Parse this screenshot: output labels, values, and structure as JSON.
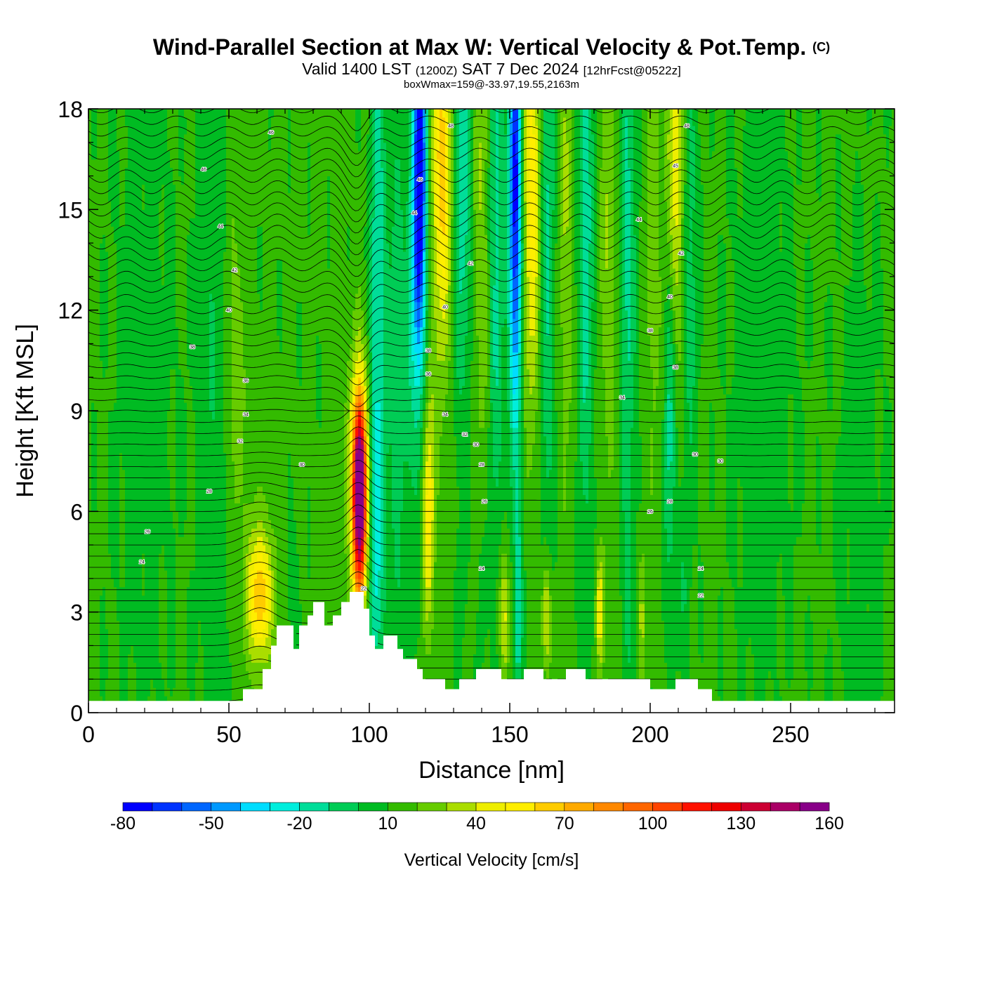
{
  "title": {
    "main": "Wind-Parallel Section at Max W: Vertical Velocity & Pot.Temp.",
    "copyright": "(C)",
    "valid": "Valid 1400 LST",
    "zulu": "(1200Z)",
    "date": "SAT 7 Dec 2024",
    "forecast": "[12hrFcst@0522z]",
    "boxwmax": "boxWmax=159@-33.97,19.55,2163m"
  },
  "chart_data": {
    "type": "heatmap",
    "xlabel": "Distance [nm]",
    "ylabel": "Height [Kft MSL]",
    "xlim": [
      0,
      287
    ],
    "ylim": [
      0,
      18
    ],
    "xticks": [
      0,
      50,
      100,
      150,
      200,
      250
    ],
    "yticks": [
      0,
      3,
      6,
      9,
      12,
      15,
      18
    ],
    "background_w": 12,
    "colorbar": {
      "label": "Vertical Velocity [cm/s]",
      "min": -80,
      "max": 170,
      "step": 10,
      "tick_values": [
        -80,
        -50,
        -20,
        10,
        40,
        70,
        100,
        130,
        160
      ],
      "colors": [
        "#0000ff",
        "#0033ff",
        "#0066ff",
        "#0099ff",
        "#00ddff",
        "#00eedd",
        "#00dd99",
        "#00cc55",
        "#00bb22",
        "#33bb00",
        "#66cc00",
        "#aadd00",
        "#eeee00",
        "#ffee00",
        "#ffcc00",
        "#ffaa00",
        "#ff8800",
        "#ff6600",
        "#ff4400",
        "#ff1100",
        "#ee0000",
        "#cc0033",
        "#aa0066",
        "#880088"
      ]
    },
    "terrain_kft": [
      [
        0,
        0.35
      ],
      [
        55,
        0.35
      ],
      [
        55,
        0.7
      ],
      [
        62,
        0.7
      ],
      [
        62,
        1.3
      ],
      [
        65,
        1.3
      ],
      [
        65,
        2.0
      ],
      [
        67,
        2.0
      ],
      [
        67,
        2.6
      ],
      [
        73,
        2.6
      ],
      [
        73,
        1.9
      ],
      [
        75,
        1.9
      ],
      [
        75,
        2.6
      ],
      [
        78,
        2.6
      ],
      [
        78,
        2.9
      ],
      [
        80,
        2.9
      ],
      [
        80,
        3.3
      ],
      [
        84,
        3.3
      ],
      [
        84,
        2.6
      ],
      [
        87,
        2.6
      ],
      [
        87,
        2.9
      ],
      [
        90,
        2.9
      ],
      [
        90,
        3.3
      ],
      [
        93,
        3.3
      ],
      [
        93,
        3.6
      ],
      [
        98,
        3.6
      ],
      [
        98,
        3.1
      ],
      [
        100,
        3.1
      ],
      [
        100,
        2.3
      ],
      [
        102,
        2.3
      ],
      [
        102,
        1.9
      ],
      [
        105,
        1.9
      ],
      [
        105,
        2.3
      ],
      [
        110,
        2.3
      ],
      [
        110,
        1.9
      ],
      [
        112,
        1.9
      ],
      [
        112,
        1.6
      ],
      [
        117,
        1.6
      ],
      [
        117,
        1.3
      ],
      [
        119,
        1.3
      ],
      [
        119,
        1.0
      ],
      [
        127,
        1.0
      ],
      [
        127,
        0.7
      ],
      [
        132,
        0.7
      ],
      [
        132,
        1.0
      ],
      [
        138,
        1.0
      ],
      [
        138,
        1.3
      ],
      [
        147,
        1.3
      ],
      [
        147,
        1.0
      ],
      [
        155,
        1.0
      ],
      [
        155,
        1.3
      ],
      [
        162,
        1.3
      ],
      [
        162,
        1.0
      ],
      [
        170,
        1.0
      ],
      [
        170,
        1.3
      ],
      [
        177,
        1.3
      ],
      [
        177,
        1.0
      ],
      [
        200,
        1.0
      ],
      [
        200,
        0.7
      ],
      [
        209,
        0.7
      ],
      [
        209,
        1.0
      ],
      [
        217,
        1.0
      ],
      [
        217,
        0.7
      ],
      [
        222,
        0.7
      ],
      [
        222,
        0.35
      ],
      [
        287,
        0.35
      ]
    ],
    "features": [
      {
        "x": 96.5,
        "y": 6.6,
        "sx": 1.6,
        "sy": 1.9,
        "w": 150
      },
      {
        "x": 96.5,
        "y": 6.4,
        "sx": 3.0,
        "sy": 3.0,
        "w": 40
      },
      {
        "x": 61,
        "y": 3.5,
        "sx": 2.6,
        "sy": 1.2,
        "w": 45
      },
      {
        "x": 61,
        "y": 3.5,
        "sx": 5,
        "sy": 2.2,
        "w": 15
      },
      {
        "x": 52,
        "y": 10.5,
        "sx": 3,
        "sy": 4,
        "w": 15
      },
      {
        "x": 102,
        "y": 4.8,
        "sx": 2,
        "sy": 3.2,
        "w": -30
      },
      {
        "x": 103,
        "y": 13,
        "sx": 2,
        "sy": 6,
        "w": -30
      },
      {
        "x": 110,
        "y": 10,
        "sx": 3,
        "sy": 7,
        "w": -15
      },
      {
        "x": 118,
        "y": 16.5,
        "sx": 1.6,
        "sy": 3.5,
        "w": -85
      },
      {
        "x": 117,
        "y": 12.5,
        "sx": 2.2,
        "sy": 4,
        "w": -35
      },
      {
        "x": 121,
        "y": 5.8,
        "sx": 1.5,
        "sy": 2.2,
        "w": 40
      },
      {
        "x": 121,
        "y": 9,
        "sx": 2.5,
        "sy": 2.5,
        "w": 10
      },
      {
        "x": 126,
        "y": 17,
        "sx": 2.5,
        "sy": 3,
        "w": 48
      },
      {
        "x": 126,
        "y": 13,
        "sx": 2.5,
        "sy": 3,
        "w": 18
      },
      {
        "x": 133,
        "y": 16,
        "sx": 2.5,
        "sy": 5,
        "w": -30
      },
      {
        "x": 140,
        "y": 16,
        "sx": 2.5,
        "sy": 6,
        "w": 20
      },
      {
        "x": 145,
        "y": 15,
        "sx": 2,
        "sy": 7,
        "w": -28
      },
      {
        "x": 152,
        "y": 16.5,
        "sx": 1.5,
        "sy": 4,
        "w": -75
      },
      {
        "x": 152,
        "y": 12,
        "sx": 1.8,
        "sy": 4,
        "w": -30
      },
      {
        "x": 153,
        "y": 3,
        "sx": 1,
        "sy": 2.2,
        "w": -32
      },
      {
        "x": 158,
        "y": 16,
        "sx": 2.5,
        "sy": 5,
        "w": 45
      },
      {
        "x": 163,
        "y": 15,
        "sx": 2,
        "sy": 7,
        "w": -28
      },
      {
        "x": 170,
        "y": 15.5,
        "sx": 2,
        "sy": 6,
        "w": 18
      },
      {
        "x": 177,
        "y": 15,
        "sx": 2,
        "sy": 7,
        "w": -28
      },
      {
        "x": 185,
        "y": 15,
        "sx": 2,
        "sy": 6,
        "w": 18
      },
      {
        "x": 192,
        "y": 14,
        "sx": 2,
        "sy": 7,
        "w": -25
      },
      {
        "x": 201,
        "y": 15,
        "sx": 2,
        "sy": 6,
        "w": 15
      },
      {
        "x": 209,
        "y": 16,
        "sx": 2.5,
        "sy": 4,
        "w": 35
      },
      {
        "x": 207,
        "y": 9,
        "sx": 1.5,
        "sy": 4,
        "w": -28
      },
      {
        "x": 214,
        "y": 14,
        "sx": 2,
        "sy": 5,
        "w": -20
      },
      {
        "x": 148,
        "y": 3,
        "sx": 1.2,
        "sy": 1.4,
        "w": 35
      },
      {
        "x": 163,
        "y": 2.8,
        "sx": 1.2,
        "sy": 1.3,
        "w": 35
      },
      {
        "x": 182,
        "y": 3,
        "sx": 1,
        "sy": 1.2,
        "w": 38
      },
      {
        "x": 133,
        "y": 3.5,
        "sx": 1.2,
        "sy": 1.5,
        "w": -5
      },
      {
        "x": 140,
        "y": 3.2,
        "sx": 1,
        "sy": 1.5,
        "w": -10
      },
      {
        "x": 176,
        "y": 3,
        "sx": 1.2,
        "sy": 1.4,
        "w": -5
      },
      {
        "x": 192,
        "y": 2.8,
        "sx": 1,
        "sy": 1.5,
        "w": -10
      },
      {
        "x": 197,
        "y": 3,
        "sx": 1,
        "sy": 1.4,
        "w": 20
      },
      {
        "x": 212,
        "y": 3.5,
        "sx": 1.5,
        "sy": 1.5,
        "w": -10
      },
      {
        "x": 73,
        "y": 3.5,
        "sx": 1.5,
        "sy": 1.5,
        "w": -10
      },
      {
        "x": 83,
        "y": 4,
        "sx": 1.5,
        "sy": 1.5,
        "w": 5
      },
      {
        "x": 45,
        "y": 9,
        "sx": 4,
        "sy": 8,
        "w": -12
      },
      {
        "x": 240,
        "y": 10,
        "sx": 8,
        "sy": 6,
        "w": -8
      },
      {
        "x": 275,
        "y": 6,
        "sx": 6,
        "sy": 6,
        "w": -6
      },
      {
        "x": 20,
        "y": 10,
        "sx": 8,
        "sy": 8,
        "w": -6
      }
    ],
    "theta_contours": {
      "min": 290,
      "max": 346,
      "step": 1
    },
    "contour_labels": [
      {
        "x": 65,
        "y": 17.3,
        "text": "46"
      },
      {
        "x": 41,
        "y": 16.2,
        "text": "46"
      },
      {
        "x": 118,
        "y": 15.9,
        "text": "46"
      },
      {
        "x": 129,
        "y": 17.5,
        "text": "48"
      },
      {
        "x": 213,
        "y": 17.5,
        "text": "48"
      },
      {
        "x": 209,
        "y": 16.3,
        "text": "45"
      },
      {
        "x": 47,
        "y": 14.5,
        "text": "44"
      },
      {
        "x": 116,
        "y": 14.9,
        "text": "44"
      },
      {
        "x": 196,
        "y": 14.7,
        "text": "44"
      },
      {
        "x": 52,
        "y": 13.2,
        "text": "42"
      },
      {
        "x": 136,
        "y": 13.4,
        "text": "42"
      },
      {
        "x": 211,
        "y": 13.7,
        "text": "42"
      },
      {
        "x": 50,
        "y": 12.0,
        "text": "40"
      },
      {
        "x": 127,
        "y": 12.1,
        "text": "40"
      },
      {
        "x": 207,
        "y": 12.4,
        "text": "40"
      },
      {
        "x": 37,
        "y": 10.9,
        "text": "38"
      },
      {
        "x": 121,
        "y": 10.8,
        "text": "38"
      },
      {
        "x": 200,
        "y": 11.4,
        "text": "38"
      },
      {
        "x": 209,
        "y": 10.3,
        "text": "38"
      },
      {
        "x": 56,
        "y": 9.9,
        "text": "36"
      },
      {
        "x": 121,
        "y": 10.1,
        "text": "36"
      },
      {
        "x": 56,
        "y": 8.9,
        "text": "34"
      },
      {
        "x": 127,
        "y": 8.9,
        "text": "34"
      },
      {
        "x": 190,
        "y": 9.4,
        "text": "34"
      },
      {
        "x": 54,
        "y": 8.1,
        "text": "32"
      },
      {
        "x": 134,
        "y": 8.3,
        "text": "32"
      },
      {
        "x": 138,
        "y": 8.0,
        "text": "30"
      },
      {
        "x": 216,
        "y": 7.7,
        "text": "30"
      },
      {
        "x": 225,
        "y": 7.5,
        "text": "30"
      },
      {
        "x": 76,
        "y": 7.4,
        "text": "30"
      },
      {
        "x": 140,
        "y": 7.4,
        "text": "28"
      },
      {
        "x": 207,
        "y": 6.3,
        "text": "28"
      },
      {
        "x": 43,
        "y": 6.6,
        "text": "28"
      },
      {
        "x": 141,
        "y": 6.3,
        "text": "26"
      },
      {
        "x": 200,
        "y": 6.0,
        "text": "26"
      },
      {
        "x": 21,
        "y": 5.4,
        "text": "26"
      },
      {
        "x": 19,
        "y": 4.5,
        "text": "24"
      },
      {
        "x": 140,
        "y": 4.3,
        "text": "24"
      },
      {
        "x": 218,
        "y": 4.3,
        "text": "24"
      },
      {
        "x": 218,
        "y": 3.5,
        "text": "22"
      },
      {
        "x": 98,
        "y": 3.7,
        "text": "22"
      }
    ]
  }
}
